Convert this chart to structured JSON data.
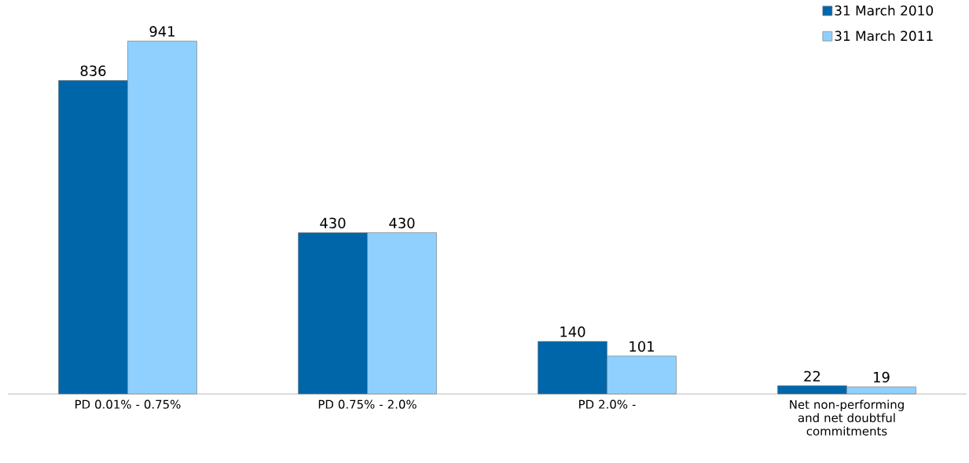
{
  "chart_data": {
    "type": "bar",
    "categories": [
      "PD  0.01% - 0.75%",
      "PD  0.75% - 2.0%",
      "PD  2.0% -",
      "Net non-performing and net doubtful commitments"
    ],
    "series": [
      {
        "name": "31 March 2010",
        "color": "#0066AA",
        "values": [
          836,
          430,
          140,
          22
        ]
      },
      {
        "name": "31 March 2011",
        "color": "#8FD0FF",
        "values": [
          941,
          430,
          101,
          19
        ]
      }
    ],
    "data_labels": true,
    "legend": "top right"
  }
}
